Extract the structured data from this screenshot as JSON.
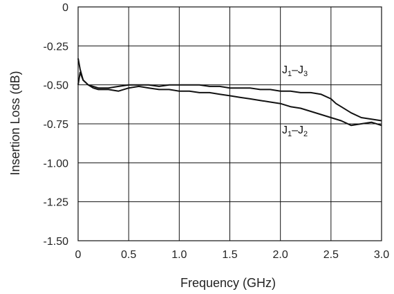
{
  "chart_data": {
    "type": "line",
    "xlabel": "Frequency (GHz)",
    "ylabel": "Insertion Loss (dB)",
    "xlim": [
      0,
      3.0
    ],
    "ylim": [
      -1.5,
      0
    ],
    "xticks": [
      "0",
      "0.5",
      "1.0",
      "1.5",
      "2.0",
      "2.5",
      "3.0"
    ],
    "yticks": [
      "0",
      "-0.25",
      "-0.50",
      "-0.75",
      "-1.00",
      "-1.25",
      "-1.50"
    ],
    "grid": true,
    "series": [
      {
        "name": "J1–J3",
        "name_main": "J",
        "name_sub1": "1",
        "name_sep": "–J",
        "name_sub2": "3",
        "color": "#111111",
        "x": [
          0.0,
          0.02,
          0.05,
          0.1,
          0.15,
          0.2,
          0.3,
          0.4,
          0.5,
          0.6,
          0.7,
          0.8,
          0.9,
          1.0,
          1.1,
          1.2,
          1.3,
          1.4,
          1.5,
          1.6,
          1.7,
          1.8,
          1.9,
          2.0,
          2.1,
          2.2,
          2.3,
          2.4,
          2.5,
          2.55,
          2.6,
          2.7,
          2.8,
          2.9,
          3.0
        ],
        "y": [
          -0.33,
          -0.4,
          -0.47,
          -0.5,
          -0.51,
          -0.52,
          -0.52,
          -0.51,
          -0.5,
          -0.5,
          -0.5,
          -0.51,
          -0.5,
          -0.5,
          -0.5,
          -0.5,
          -0.51,
          -0.51,
          -0.52,
          -0.52,
          -0.52,
          -0.53,
          -0.53,
          -0.54,
          -0.54,
          -0.55,
          -0.55,
          -0.56,
          -0.59,
          -0.62,
          -0.64,
          -0.68,
          -0.71,
          -0.72,
          -0.73
        ]
      },
      {
        "name": "J1–J2",
        "name_main": "J",
        "name_sub1": "1",
        "name_sep": "–J",
        "name_sub2": "2",
        "color": "#111111",
        "x": [
          0.0,
          0.02,
          0.05,
          0.1,
          0.15,
          0.2,
          0.3,
          0.4,
          0.5,
          0.6,
          0.7,
          0.8,
          0.9,
          1.0,
          1.1,
          1.2,
          1.3,
          1.4,
          1.5,
          1.6,
          1.7,
          1.8,
          1.9,
          2.0,
          2.1,
          2.2,
          2.3,
          2.4,
          2.5,
          2.6,
          2.7,
          2.8,
          2.9,
          3.0
        ],
        "y": [
          -0.5,
          -0.42,
          -0.47,
          -0.5,
          -0.52,
          -0.53,
          -0.53,
          -0.54,
          -0.52,
          -0.51,
          -0.52,
          -0.53,
          -0.53,
          -0.54,
          -0.54,
          -0.55,
          -0.55,
          -0.56,
          -0.57,
          -0.58,
          -0.59,
          -0.6,
          -0.61,
          -0.62,
          -0.64,
          -0.65,
          -0.67,
          -0.69,
          -0.71,
          -0.73,
          -0.76,
          -0.75,
          -0.74,
          -0.76
        ]
      }
    ]
  }
}
